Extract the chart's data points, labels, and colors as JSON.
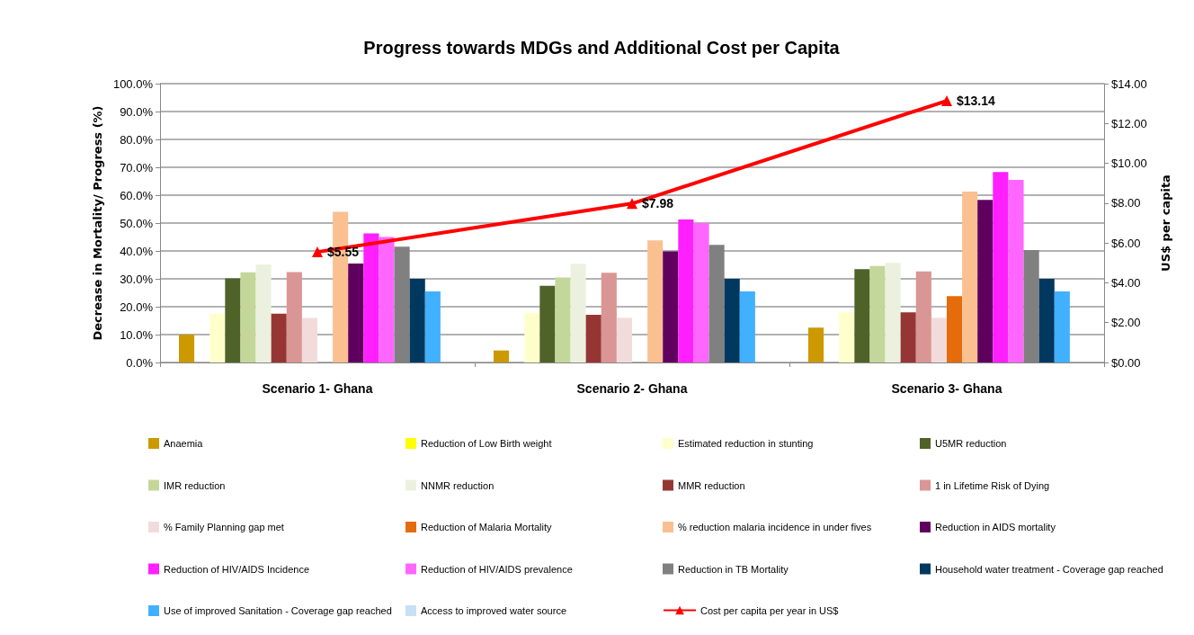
{
  "chart_data": {
    "type": "bar",
    "title": "Progress towards MDGs and Additional Cost per Capita",
    "ylabel": "Decrease in Mortality/ Progress (%)",
    "y2label": "US$ per capita",
    "categories": [
      "Scenario 1- Ghana",
      "Scenario 2- Ghana",
      "Scenario 3- Ghana"
    ],
    "ylim": [
      0,
      100
    ],
    "yticks": [
      {
        "value": 0,
        "label": "0.0%"
      },
      {
        "value": 10,
        "label": "10.0%"
      },
      {
        "value": 20,
        "label": "20.0%"
      },
      {
        "value": 30,
        "label": "30.0%"
      },
      {
        "value": 40,
        "label": "40.0%"
      },
      {
        "value": 50,
        "label": "50.0%"
      },
      {
        "value": 60,
        "label": "60.0%"
      },
      {
        "value": 70,
        "label": "70.0%"
      },
      {
        "value": 80,
        "label": "80.0%"
      },
      {
        "value": 90,
        "label": "90.0%"
      },
      {
        "value": 100,
        "label": "100.0%"
      }
    ],
    "y2lim": [
      0,
      14
    ],
    "y2ticks": [
      {
        "value": 0,
        "label": "$0.00"
      },
      {
        "value": 2,
        "label": "$2.00"
      },
      {
        "value": 4,
        "label": "$4.00"
      },
      {
        "value": 6,
        "label": "$6.00"
      },
      {
        "value": 8,
        "label": "$8.00"
      },
      {
        "value": 10,
        "label": "$10.00"
      },
      {
        "value": 12,
        "label": "$12.00"
      },
      {
        "value": 14,
        "label": "$14.00"
      }
    ],
    "grid": "y",
    "legend": "bottom",
    "series": [
      {
        "name": "Anaemia",
        "color": "#cc9900",
        "values": [
          10,
          4.3,
          12.5
        ]
      },
      {
        "name": "Reduction of Low Birth weight",
        "color": "#ffff00",
        "values": [
          0,
          0,
          0
        ]
      },
      {
        "name": "Estimated reduction in stunting",
        "color": "#ffffcc",
        "values": [
          17.5,
          17.8,
          18
        ]
      },
      {
        "name": "U5MR reduction",
        "color": "#4f6228",
        "values": [
          30.2,
          27.5,
          33.5
        ]
      },
      {
        "name": "IMR reduction",
        "color": "#c4d79b",
        "values": [
          32.3,
          30.5,
          34.6
        ]
      },
      {
        "name": "NNMR reduction",
        "color": "#ebf1de",
        "values": [
          35.1,
          35.4,
          35.7
        ]
      },
      {
        "name": "MMR reduction",
        "color": "#963634",
        "values": [
          17.5,
          17.1,
          18
        ]
      },
      {
        "name": "1 in Lifetime Risk of Dying",
        "color": "#da9694",
        "values": [
          32.4,
          32.2,
          32.7
        ]
      },
      {
        "name": "% Family Planning gap met",
        "color": "#f2dcdb",
        "values": [
          16,
          16,
          16
        ]
      },
      {
        "name": "Reduction of Malaria Mortality",
        "color": "#e46c0a",
        "values": [
          0,
          0,
          23.8
        ]
      },
      {
        "name": "% reduction malaria incidence in under fives",
        "color": "#fac090",
        "values": [
          54,
          43.8,
          61.3
        ]
      },
      {
        "name": "Reduction in AIDS mortality",
        "color": "#60005e",
        "values": [
          35.5,
          39.8,
          58.3
        ]
      },
      {
        "name": "Reduction of HIV/AIDS Incidence",
        "color": "#ff1fff",
        "values": [
          46.3,
          51.3,
          68.3
        ]
      },
      {
        "name": "Reduction of HIV/AIDS prevalence",
        "color": "#ff66ff",
        "values": [
          45,
          50,
          65.5
        ]
      },
      {
        "name": "Reduction in TB Mortality",
        "color": "#808080",
        "values": [
          41.5,
          42.2,
          40.3
        ]
      },
      {
        "name": "Household water treatment - Coverage gap reached",
        "color": "#003860",
        "values": [
          30,
          30,
          30
        ]
      },
      {
        "name": "Use of improved Sanitation - Coverage gap reached",
        "color": "#41b0ff",
        "values": [
          25.5,
          25.5,
          25.5
        ]
      },
      {
        "name": "Access to improved water source",
        "color": "#c6e0f5",
        "values": [
          0,
          0,
          0
        ]
      },
      {
        "name": "Cost per capita per year in US$",
        "type": "line",
        "axis": "y2",
        "color": "#ff0000",
        "marker": "triangle",
        "values": [
          5.55,
          7.98,
          13.14
        ],
        "value_labels": [
          "$5.55",
          "$7.98",
          "$13.14"
        ]
      }
    ]
  }
}
